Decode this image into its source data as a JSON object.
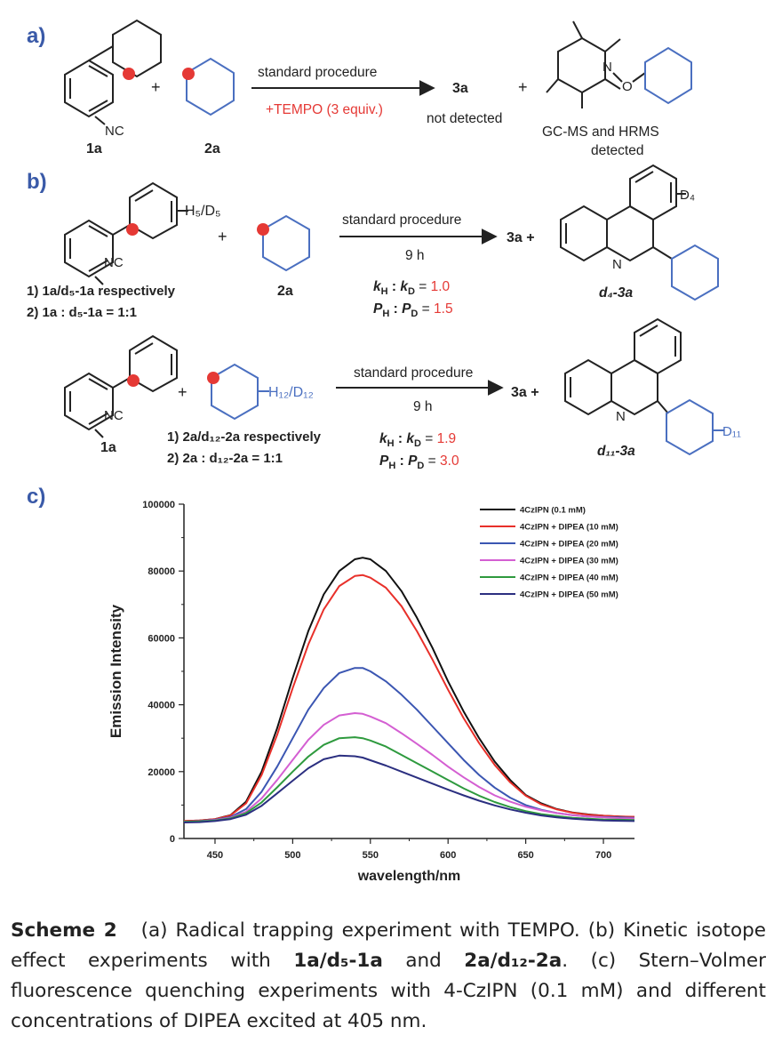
{
  "panels": {
    "a": "a)",
    "b": "b)",
    "c": "c)"
  },
  "panel_a": {
    "reactant1": "1a",
    "reactant2": "2a",
    "nc": "NC",
    "plus": "+",
    "arrow_top": "standard procedure",
    "arrow_bottom": "+TEMPO (3 equiv.)",
    "product": "3a",
    "product_note": "not detected",
    "adduct_n": "N",
    "adduct_o": "O",
    "adduct_note_line1": "GC-MS and HRMS",
    "adduct_note_line2": "detected"
  },
  "panel_b1": {
    "substituent": "H₅/D₅",
    "nc": "NC",
    "plus": "+",
    "note1": "1) 1a/d₅-1a respectively",
    "note2": "2) 1a : d₅-1a = 1:1",
    "reactant2": "2a",
    "arrow_top": "standard procedure",
    "arrow_bottom": "9 h",
    "kie_k": "kH : kD = 1.0",
    "kie_p": "PH : PD = 1.5",
    "product_pre": "3a +",
    "product_sub": "D₄",
    "product_n": "N",
    "product_label": "d₄-3a"
  },
  "panel_b2": {
    "nc": "NC",
    "plus": "+",
    "reactant1": "1a",
    "substituent": "H₁₂/D₁₂",
    "note1": "1) 2a/d₁₂-2a respectively",
    "note2": "2) 2a : d₁₂-2a = 1:1",
    "arrow_top": "standard procedure",
    "arrow_bottom": "9 h",
    "kie_k": "kH : kD = 1.9",
    "kie_p": "PH : PD = 3.0",
    "product_pre": "3a +",
    "product_sub": "D₁₁",
    "product_n": "N",
    "product_label": "d₁₁-3a"
  },
  "chart_data": {
    "type": "line",
    "xlabel": "wavelength/nm",
    "ylabel": "Emission Intensity",
    "xlim": [
      430,
      720
    ],
    "ylim": [
      0,
      100000
    ],
    "xticks": [
      450,
      500,
      550,
      600,
      650,
      700
    ],
    "yticks": [
      0,
      20000,
      40000,
      60000,
      80000,
      100000
    ],
    "legend_position": "top-right",
    "grid": false,
    "x": [
      430,
      440,
      450,
      460,
      470,
      480,
      490,
      500,
      510,
      520,
      530,
      540,
      545,
      550,
      560,
      570,
      580,
      590,
      600,
      610,
      620,
      630,
      640,
      650,
      660,
      670,
      680,
      690,
      700,
      710,
      720
    ],
    "series": [
      {
        "name": "4CzIPN (0.1 mM)",
        "color": "#111111",
        "values": [
          5200,
          5400,
          5800,
          7000,
          11000,
          20000,
          33000,
          48000,
          62000,
          73000,
          80000,
          83500,
          84000,
          83500,
          80000,
          74000,
          66000,
          57000,
          47000,
          38000,
          30000,
          23000,
          17500,
          13000,
          10500,
          8800,
          7800,
          7200,
          6800,
          6600,
          6400
        ]
      },
      {
        "name": "4CzIPN + DIPEA (10 mM)",
        "color": "#e8302a",
        "values": [
          5200,
          5400,
          5800,
          6900,
          10500,
          19000,
          31000,
          45000,
          58000,
          68500,
          75500,
          78500,
          78800,
          78000,
          75000,
          69500,
          62000,
          53500,
          44500,
          36000,
          28500,
          22000,
          16800,
          12800,
          10200,
          8700,
          7700,
          7100,
          6800,
          6600,
          6500
        ]
      },
      {
        "name": "4CzIPN + DIPEA (20 mM)",
        "color": "#3b56b2",
        "values": [
          5000,
          5200,
          5600,
          6400,
          8800,
          14000,
          21500,
          30000,
          38500,
          45000,
          49500,
          51000,
          51000,
          50000,
          47000,
          43000,
          38500,
          33500,
          28500,
          23500,
          19000,
          15200,
          12200,
          10000,
          8600,
          7600,
          7000,
          6600,
          6400,
          6300,
          6200
        ]
      },
      {
        "name": "4CzIPN + DIPEA (30 mM)",
        "color": "#d45fd2",
        "values": [
          5000,
          5100,
          5500,
          6200,
          8000,
          12000,
          17500,
          23500,
          29500,
          34000,
          36800,
          37500,
          37300,
          36500,
          34500,
          31500,
          28300,
          25000,
          21500,
          18300,
          15400,
          12900,
          11000,
          9500,
          8400,
          7600,
          7000,
          6600,
          6300,
          6100,
          6000
        ]
      },
      {
        "name": "4CzIPN + DIPEA (40 mM)",
        "color": "#2e9a3e",
        "values": [
          5000,
          5100,
          5400,
          6000,
          7600,
          10800,
          15300,
          20000,
          24500,
          28000,
          30000,
          30300,
          30000,
          29300,
          27500,
          25000,
          22500,
          20000,
          17500,
          15000,
          12800,
          10900,
          9400,
          8200,
          7300,
          6700,
          6200,
          5900,
          5700,
          5600,
          5500
        ]
      },
      {
        "name": "4CzIPN + DIPEA (50 mM)",
        "color": "#2b2f80",
        "values": [
          4800,
          4900,
          5200,
          5800,
          7100,
          9800,
          13500,
          17300,
          21000,
          23700,
          24800,
          24600,
          24200,
          23400,
          21800,
          20000,
          18200,
          16400,
          14600,
          12900,
          11300,
          9900,
          8700,
          7700,
          6900,
          6300,
          5900,
          5600,
          5400,
          5300,
          5200
        ]
      }
    ]
  },
  "caption": {
    "label": "Scheme 2",
    "a": "(a) Radical trapping experiment with TEMPO.",
    "b_pre": "(b) Kinetic isotope effect experiments with",
    "b_c1": "1a/d₅-1a",
    "b_and": "and",
    "b_c2": "2a/d₁₂-2a",
    "c": "(c) Stern–Volmer fluorescence quenching experiments with 4-CzIPN (0.1 mM) and different concentrations of DIPEA excited at 405 nm."
  },
  "colors": {
    "panel_label": "#3a5aa8",
    "red": "#e53935",
    "ring_blue": "#4a6fc0",
    "structure": "#222222"
  }
}
